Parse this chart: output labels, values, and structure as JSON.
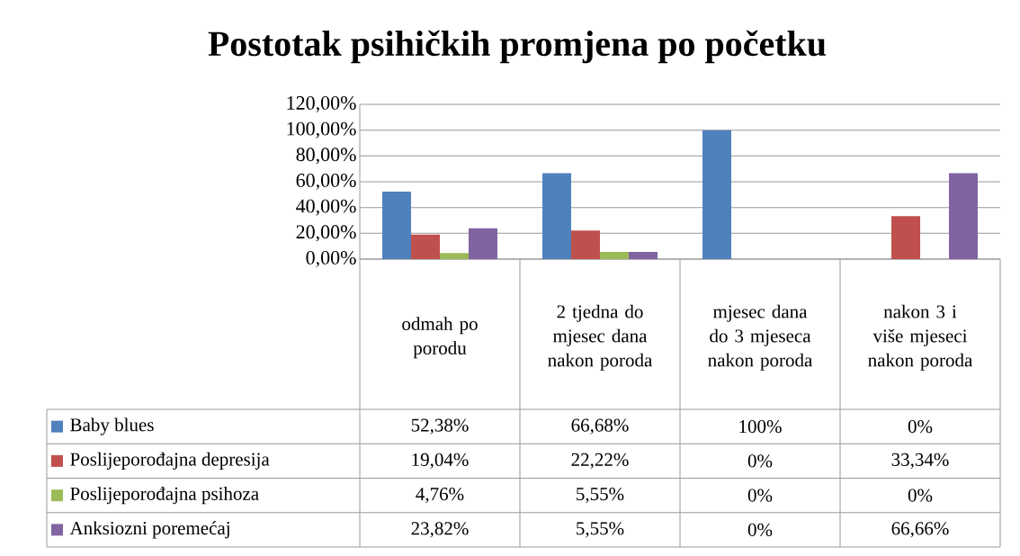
{
  "chart_data": {
    "type": "bar",
    "title": "Postotak psihičkih promjena po početku",
    "categories": [
      "odmah po porodu",
      "2 tjedna do mjesec dana nakon poroda",
      "mjesec dana do 3 mjeseca nakon poroda",
      "nakon 3 i više mjeseci nakon poroda"
    ],
    "series": [
      {
        "name": "Baby blues",
        "color": "#4f81bd",
        "values": [
          52.38,
          66.68,
          100,
          0
        ],
        "value_labels": [
          "52,38%",
          "66,68%",
          "100%",
          "0%"
        ]
      },
      {
        "name": "Poslijeporođajna depresija",
        "color": "#c0504d",
        "values": [
          19.04,
          22.22,
          0,
          33.34
        ],
        "value_labels": [
          "19,04%",
          "22,22%",
          "0%",
          "33,34%"
        ]
      },
      {
        "name": "Poslijeporođajna psihoza",
        "color": "#9bbb59",
        "values": [
          4.76,
          5.55,
          0,
          0
        ],
        "value_labels": [
          "4,76%",
          "5,55%",
          "0%",
          "0%"
        ]
      },
      {
        "name": "Anksiozni poremećaj",
        "color": "#8064a2",
        "values": [
          23.82,
          5.55,
          0,
          66.66
        ],
        "value_labels": [
          "23,82%",
          "5,55%",
          "0%",
          "66,66%"
        ]
      }
    ],
    "ylim": [
      0,
      120
    ],
    "yticks": [
      {
        "value": 0,
        "label": "0,00%"
      },
      {
        "value": 20,
        "label": "20,00%"
      },
      {
        "value": 40,
        "label": "40,00%"
      },
      {
        "value": 60,
        "label": "60,00%"
      },
      {
        "value": 80,
        "label": "80,00%"
      },
      {
        "value": 100,
        "label": "100,00%"
      },
      {
        "value": 120,
        "label": "120,00%"
      }
    ],
    "grid": "y",
    "legend": "bottom"
  }
}
